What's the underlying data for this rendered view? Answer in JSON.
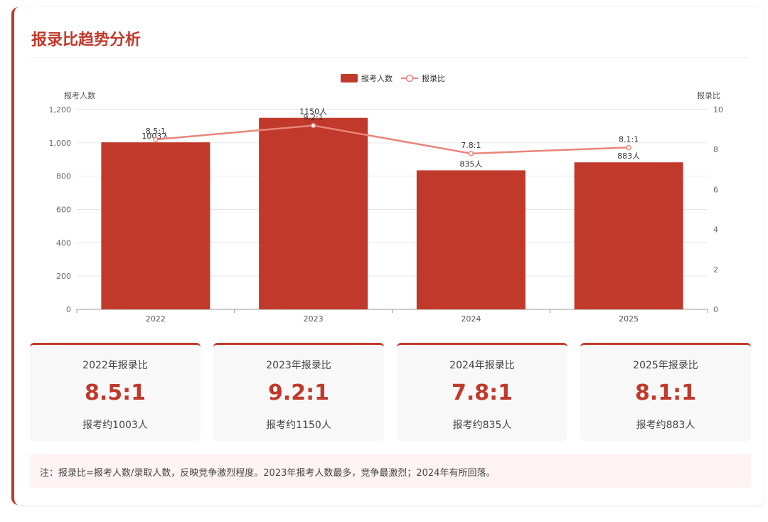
{
  "title": "报录比趋势分析",
  "chart_data": {
    "type": "bar",
    "categories": [
      "2022",
      "2023",
      "2024",
      "2025"
    ],
    "series": [
      {
        "name": "报考人数",
        "type": "bar",
        "axis": "left",
        "values": [
          1003,
          1150,
          835,
          883
        ],
        "labels": [
          "1003人",
          "1150人",
          "835人",
          "883人"
        ],
        "color": "#c0392b"
      },
      {
        "name": "报录比",
        "type": "line",
        "axis": "right",
        "values": [
          8.5,
          9.2,
          7.8,
          8.1
        ],
        "labels": [
          "8.5:1",
          "9.2:1",
          "7.8:1",
          "8.1:1"
        ],
        "color": "#e8857a"
      }
    ],
    "ylabel_left": "报考人数",
    "ylabel_right": "报录比",
    "ylim_left": [
      0,
      1200
    ],
    "ylim_right": [
      0,
      10
    ],
    "yticks_left": [
      "0",
      "200",
      "400",
      "600",
      "800",
      "1,000",
      "1,200"
    ],
    "yticks_right": [
      "0",
      "2",
      "4",
      "6",
      "8",
      "10"
    ],
    "legend": "top-center",
    "grid": true
  },
  "stats": [
    {
      "title": "2022年报录比",
      "ratio": "8.5:1",
      "sub": "报考约1003人"
    },
    {
      "title": "2023年报录比",
      "ratio": "9.2:1",
      "sub": "报考约1150人"
    },
    {
      "title": "2024年报录比",
      "ratio": "7.8:1",
      "sub": "报考约835人"
    },
    {
      "title": "2025年报录比",
      "ratio": "8.1:1",
      "sub": "报考约883人"
    }
  ],
  "note": "注：报录比=报考人数/录取人数，反映竞争激烈程度。2023年报考人数最多，竞争最激烈；2024年有所回落。"
}
